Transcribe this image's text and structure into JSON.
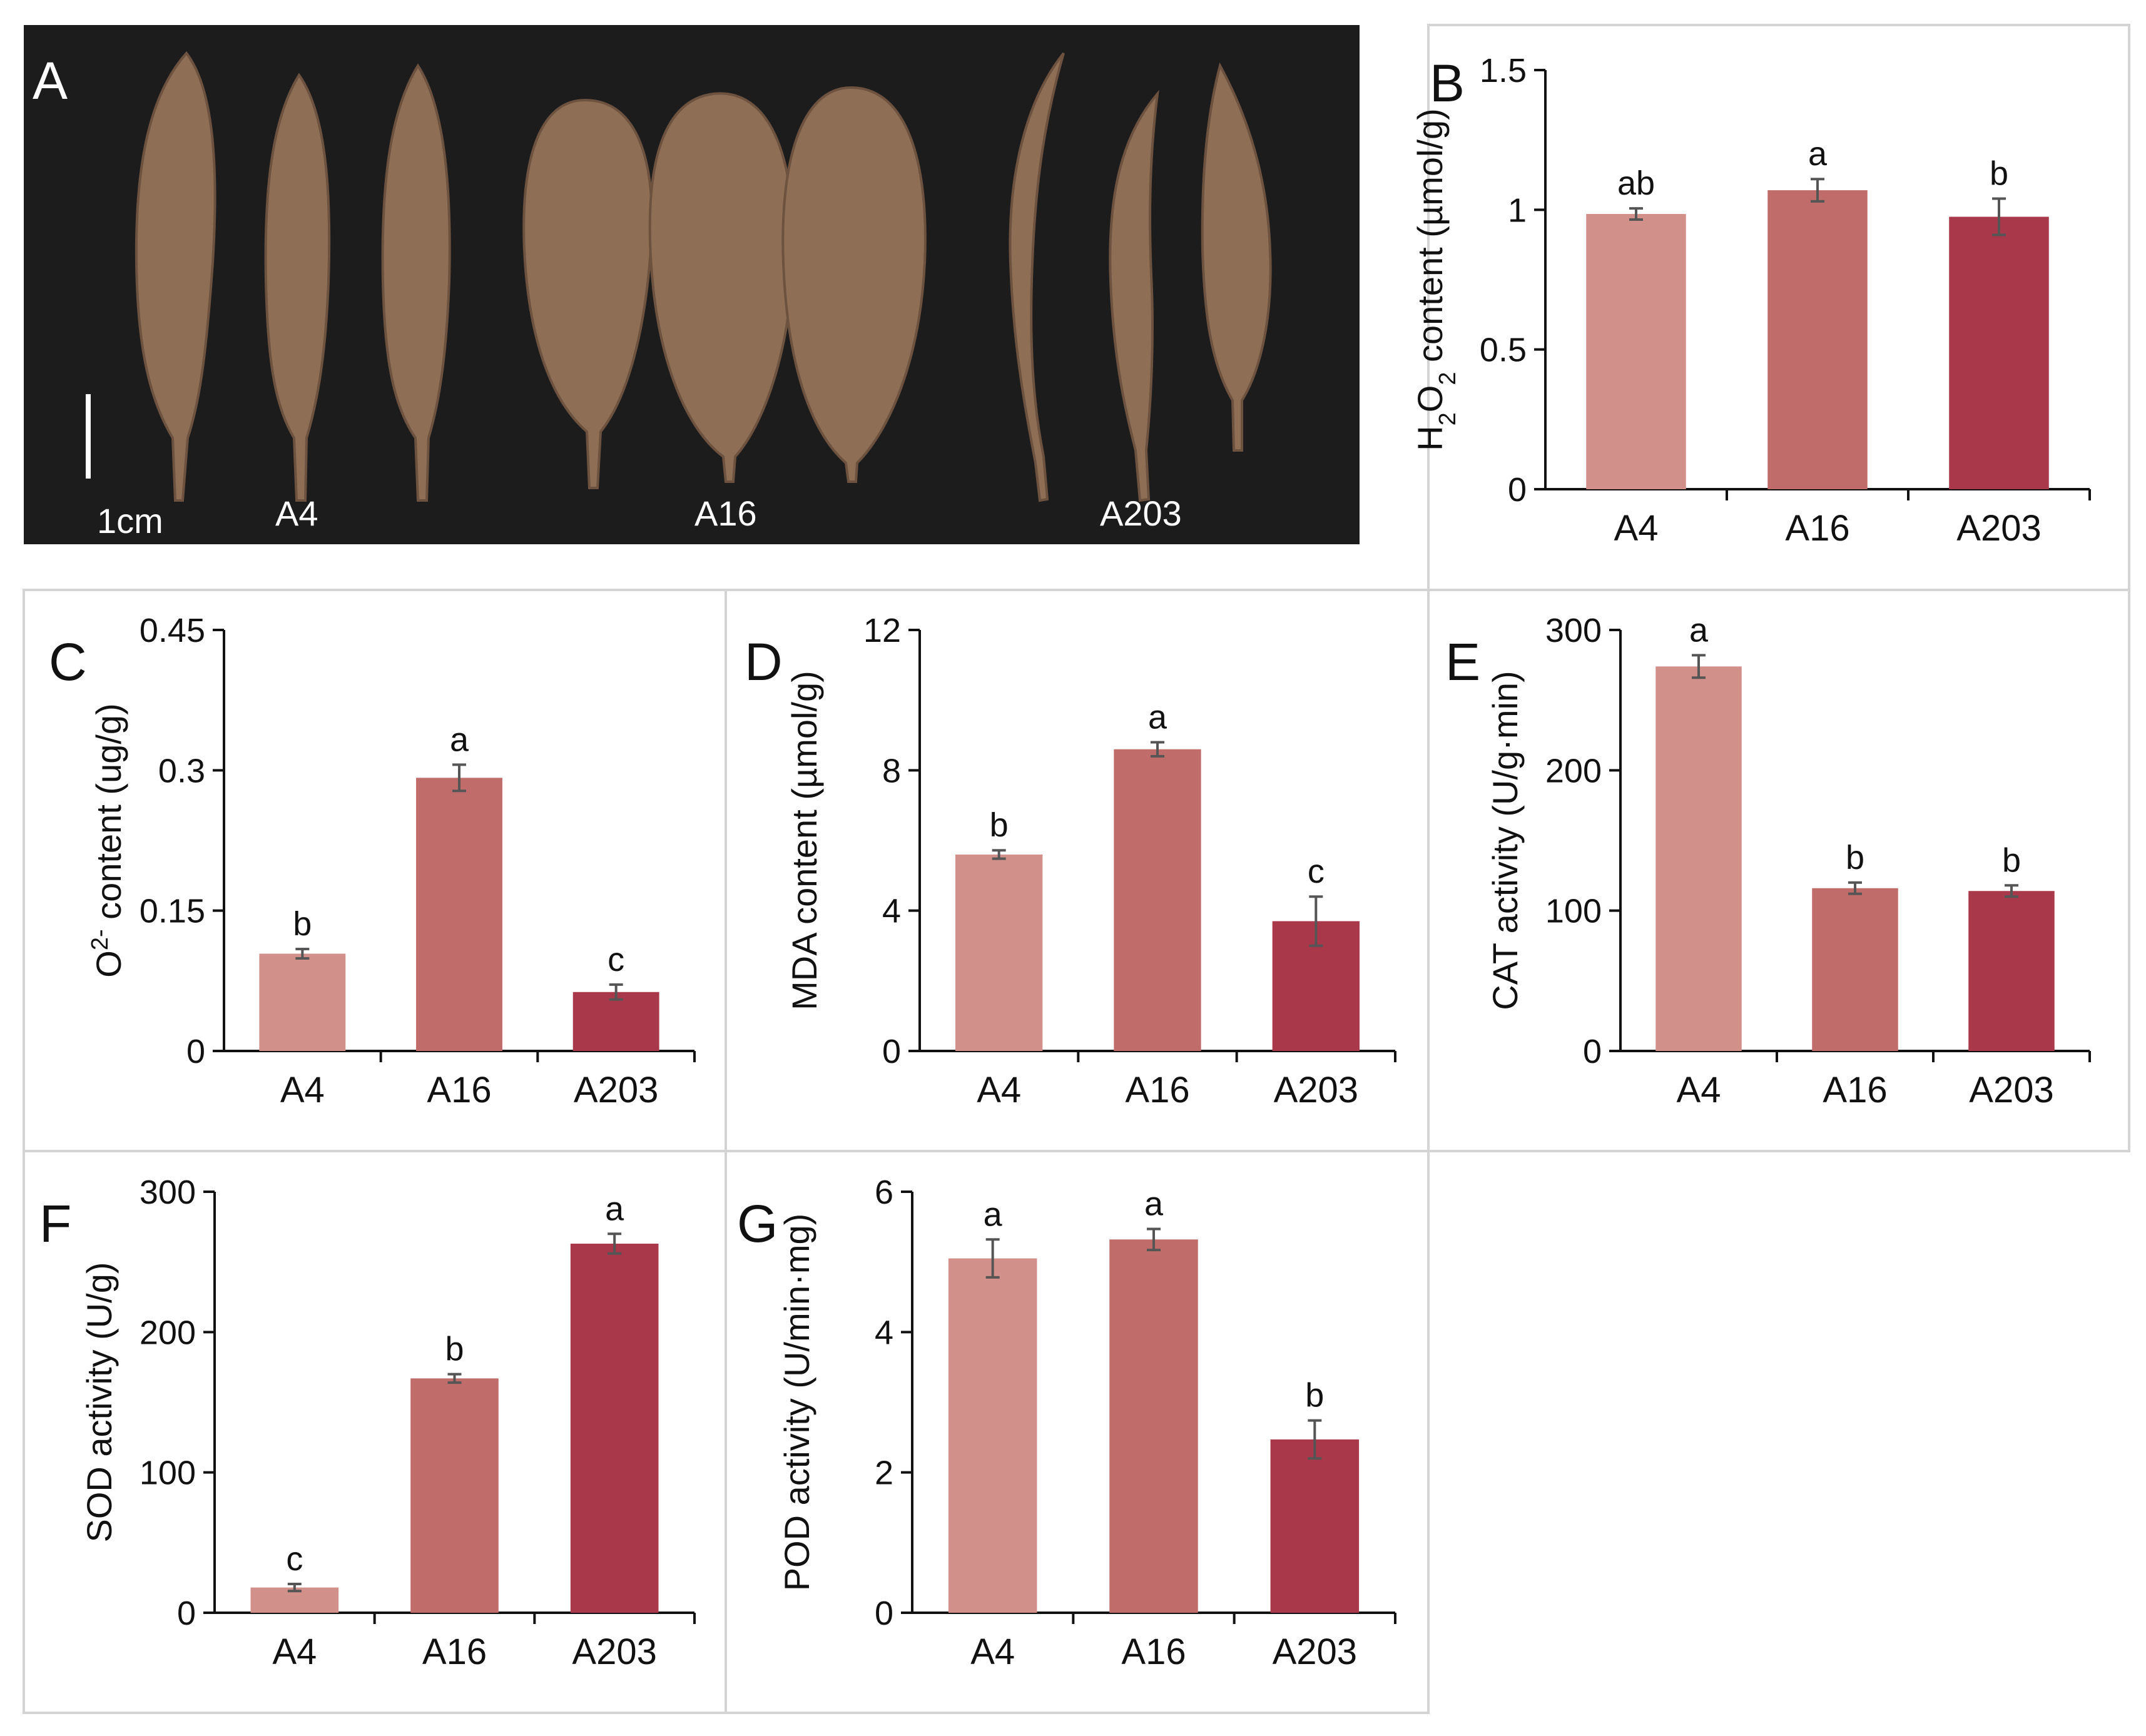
{
  "photo_panel": {
    "letter": "A",
    "scale_bar_label": "1cm",
    "groups": [
      "A4",
      "A16",
      "A203"
    ],
    "background_color": "#1c1c1c",
    "leaf_color": "#8e6e55"
  },
  "colors": {
    "A4": "#d2908b",
    "A16": "#c06c6b",
    "A203": "#a8384a"
  },
  "chart_data": [
    {
      "id": "B",
      "letter": "B",
      "type": "bar",
      "categories": [
        "A4",
        "A16",
        "A203"
      ],
      "values": [
        0.985,
        1.07,
        0.975
      ],
      "errors": [
        0.02,
        0.04,
        0.065
      ],
      "significance": [
        "ab",
        "a",
        "b"
      ],
      "ylabel_parts": [
        [
          "H",
          "",
          "normal"
        ],
        [
          "2",
          "sub",
          "normal"
        ],
        [
          "O",
          "",
          "normal"
        ],
        [
          "2",
          "sub",
          "normal"
        ],
        [
          " content (µmol/g)",
          "",
          "normal"
        ]
      ],
      "ylim": [
        0,
        1.5
      ],
      "yticks": [
        0,
        0.5,
        1,
        1.5
      ],
      "ytick_labels": [
        "0",
        "0.5",
        "1",
        "1.5"
      ]
    },
    {
      "id": "C",
      "letter": "C",
      "type": "bar",
      "categories": [
        "A4",
        "A16",
        "A203"
      ],
      "values": [
        0.104,
        0.292,
        0.063
      ],
      "errors": [
        0.005,
        0.014,
        0.008
      ],
      "significance": [
        "b",
        "a",
        "c"
      ],
      "ylabel_parts": [
        [
          "O",
          "",
          "normal"
        ],
        [
          "2-",
          "sup",
          "normal"
        ],
        [
          " content (ug/g)",
          "",
          "normal"
        ]
      ],
      "ylim": [
        0,
        0.45
      ],
      "yticks": [
        0,
        0.15,
        0.3,
        0.45
      ],
      "ytick_labels": [
        "0",
        "0.15",
        "0.3",
        "0.45"
      ]
    },
    {
      "id": "D",
      "letter": "D",
      "type": "bar",
      "categories": [
        "A4",
        "A16",
        "A203"
      ],
      "values": [
        5.6,
        8.6,
        3.7
      ],
      "errors": [
        0.12,
        0.2,
        0.7
      ],
      "significance": [
        "b",
        "a",
        "c"
      ],
      "ylabel_parts": [
        [
          "MDA content (µmol/g)",
          "",
          "normal"
        ]
      ],
      "ylim": [
        0,
        12
      ],
      "yticks": [
        0,
        4,
        8,
        12
      ],
      "ytick_labels": [
        "0",
        "4",
        "8",
        "12"
      ]
    },
    {
      "id": "E",
      "letter": "E",
      "type": "bar",
      "categories": [
        "A4",
        "A16",
        "A203"
      ],
      "values": [
        274,
        116,
        114
      ],
      "errors": [
        8,
        4,
        4
      ],
      "significance": [
        "a",
        "b",
        "b"
      ],
      "ylabel_parts": [
        [
          "CAT activity (U/g·min)",
          "",
          "normal"
        ]
      ],
      "ylim": [
        0,
        300
      ],
      "yticks": [
        0,
        100,
        200,
        300
      ],
      "ytick_labels": [
        "0",
        "100",
        "200",
        "300"
      ]
    },
    {
      "id": "F",
      "letter": "F",
      "type": "bar",
      "categories": [
        "A4",
        "A16",
        "A203"
      ],
      "values": [
        18,
        167,
        263
      ],
      "errors": [
        2.5,
        3,
        7
      ],
      "significance": [
        "c",
        "b",
        "a"
      ],
      "ylabel_parts": [
        [
          "SOD activity (U/g)",
          "",
          "normal"
        ]
      ],
      "ylim": [
        0,
        300
      ],
      "yticks": [
        0,
        100,
        200,
        300
      ],
      "ytick_labels": [
        "0",
        "100",
        "200",
        "300"
      ]
    },
    {
      "id": "G",
      "letter": "G",
      "type": "bar",
      "categories": [
        "A4",
        "A16",
        "A203"
      ],
      "values": [
        5.05,
        5.32,
        2.47
      ],
      "errors": [
        0.27,
        0.15,
        0.27
      ],
      "significance": [
        "a",
        "a",
        "b"
      ],
      "ylabel_parts": [
        [
          "POD activity (U/min·mg)",
          "",
          "normal"
        ]
      ],
      "ylim": [
        0,
        6
      ],
      "yticks": [
        0,
        2,
        4,
        6
      ],
      "ytick_labels": [
        "0",
        "2",
        "4",
        "6"
      ]
    }
  ]
}
